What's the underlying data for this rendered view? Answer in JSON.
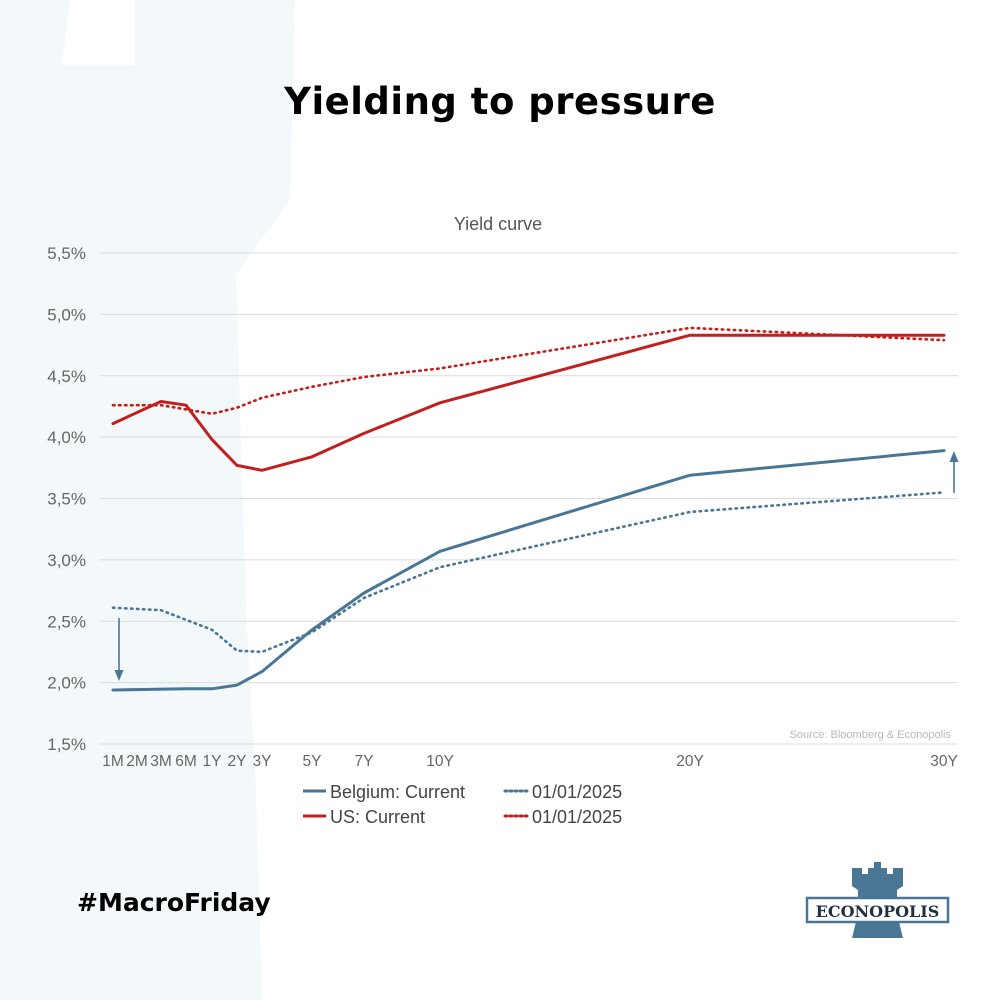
{
  "headline": "Yielding to pressure",
  "hashtag": "#MacroFriday",
  "logo_text": "ECONOPOLIS",
  "colors": {
    "belgium": "#4a7696",
    "us": "#c21f1f",
    "background_shape": "#f3f9fa",
    "grid": "#dcdcdc",
    "axis_text": "#666666",
    "source_text": "#b8b8b8",
    "logo": "#4a7696"
  },
  "chart_data": {
    "type": "line",
    "title": "Yield curve",
    "source": "Source: Bloomberg & Econopolis",
    "x": [
      0.083,
      0.25,
      0.5,
      1,
      2,
      3,
      5,
      7,
      10,
      20,
      30
    ],
    "x_tick_labels": [
      {
        "x": 0.083,
        "label": "1M"
      },
      {
        "x": 0.25,
        "label": "2M"
      },
      {
        "x": 0.5,
        "label": "3M"
      },
      {
        "x": 0.75,
        "label": "6M"
      },
      {
        "x": 1,
        "label": "1Y"
      },
      {
        "x": 2,
        "label": "2Y"
      },
      {
        "x": 3,
        "label": "3Y"
      },
      {
        "x": 5,
        "label": "5Y"
      },
      {
        "x": 7,
        "label": "7Y"
      },
      {
        "x": 10,
        "label": "10Y"
      },
      {
        "x": 20,
        "label": "20Y"
      },
      {
        "x": 30,
        "label": "30Y"
      }
    ],
    "ylim": [
      1.5,
      5.5
    ],
    "y_ticks": [
      {
        "value": 1.5,
        "label": "1,5%"
      },
      {
        "value": 2.0,
        "label": "2,0%"
      },
      {
        "value": 2.5,
        "label": "2,5%"
      },
      {
        "value": 3.0,
        "label": "3,0%"
      },
      {
        "value": 3.5,
        "label": "3,5%"
      },
      {
        "value": 4.0,
        "label": "4,0%"
      },
      {
        "value": 4.5,
        "label": "4,5%"
      },
      {
        "value": 5.0,
        "label": "5,0%"
      },
      {
        "value": 5.5,
        "label": "5,5%"
      }
    ],
    "grid": true,
    "legend_position": "bottom",
    "series": [
      {
        "name": "Belgium: Current",
        "color": "#4a7696",
        "style": "solid",
        "points": [
          [
            0.083,
            1.94
          ],
          [
            0.75,
            1.95
          ],
          [
            1,
            1.95
          ],
          [
            2,
            1.98
          ],
          [
            3,
            2.09
          ],
          [
            5,
            2.43
          ],
          [
            7,
            2.73
          ],
          [
            10,
            3.07
          ],
          [
            20,
            3.69
          ],
          [
            30,
            3.89
          ]
        ]
      },
      {
        "name": "01/01/2025",
        "color": "#4a7696",
        "style": "dotted",
        "points": [
          [
            0.083,
            2.61
          ],
          [
            0.5,
            2.59
          ],
          [
            1,
            2.43
          ],
          [
            2,
            2.26
          ],
          [
            3,
            2.25
          ],
          [
            5,
            2.41
          ],
          [
            7,
            2.69
          ],
          [
            10,
            2.94
          ],
          [
            20,
            3.39
          ],
          [
            30,
            3.55
          ]
        ]
      },
      {
        "name": "US: Current",
        "color": "#c21f1f",
        "style": "solid",
        "points": [
          [
            0.083,
            4.11
          ],
          [
            0.5,
            4.29
          ],
          [
            0.75,
            4.26
          ],
          [
            1,
            3.98
          ],
          [
            2,
            3.77
          ],
          [
            3,
            3.73
          ],
          [
            5,
            3.84
          ],
          [
            7,
            4.03
          ],
          [
            10,
            4.28
          ],
          [
            20,
            4.83
          ],
          [
            30,
            4.83
          ]
        ]
      },
      {
        "name": "01/01/2025",
        "color": "#c21f1f",
        "style": "dotted",
        "points": [
          [
            0.083,
            4.26
          ],
          [
            0.5,
            4.26
          ],
          [
            1,
            4.19
          ],
          [
            2,
            4.24
          ],
          [
            3,
            4.32
          ],
          [
            5,
            4.41
          ],
          [
            7,
            4.49
          ],
          [
            10,
            4.56
          ],
          [
            20,
            4.89
          ],
          [
            30,
            4.79
          ]
        ]
      }
    ]
  }
}
